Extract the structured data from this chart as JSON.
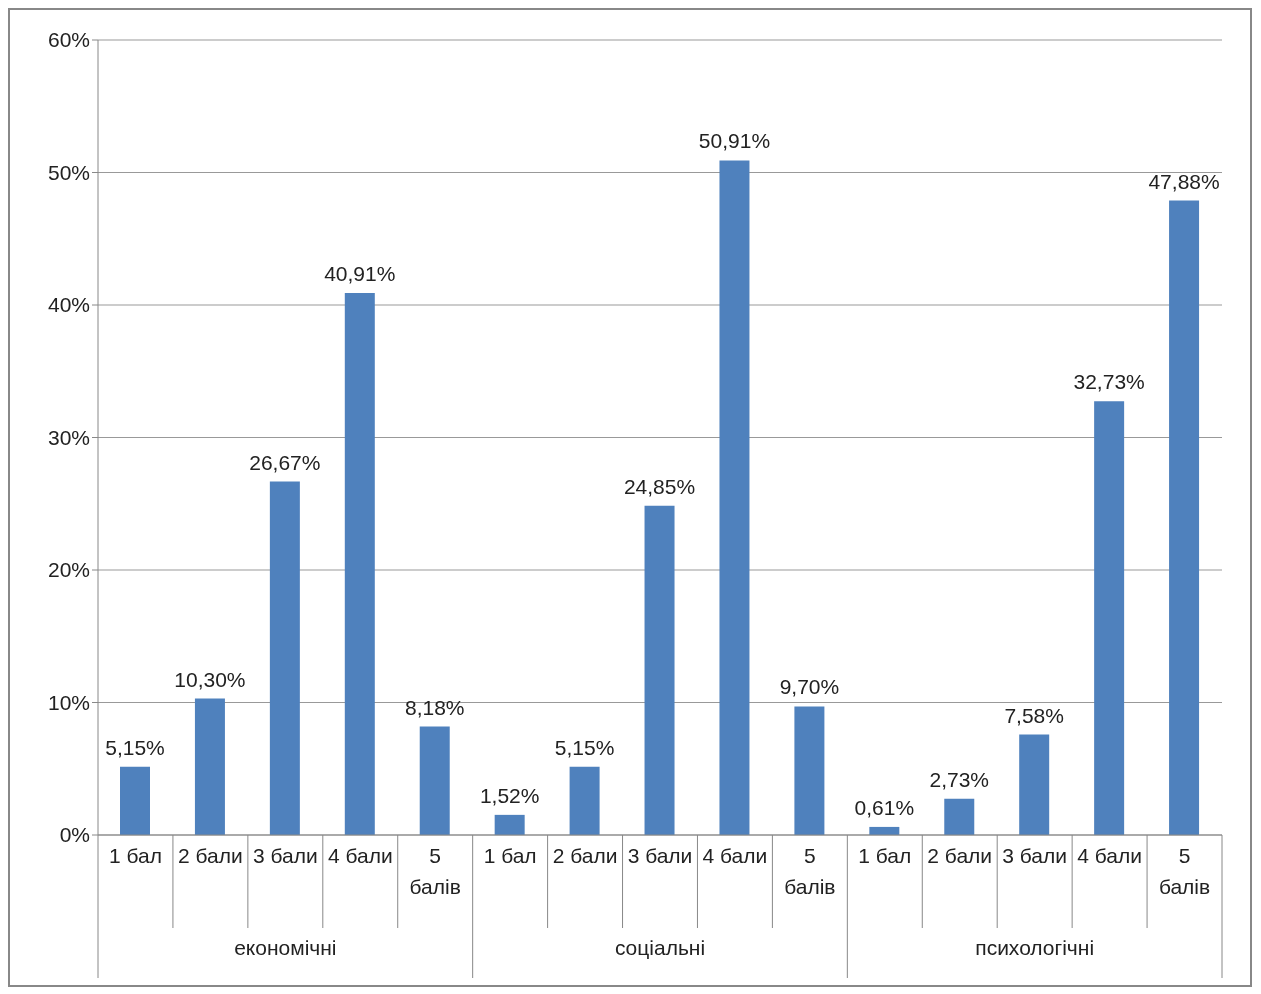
{
  "chart_data": {
    "type": "bar",
    "categories": [
      "1 бал",
      "2 бали",
      "3 бали",
      "4 бали",
      "5 балів",
      "1 бал",
      "2 бали",
      "3 бали",
      "4 бали",
      "5 балів",
      "1 бал",
      "2 бали",
      "3 бали",
      "4 бали",
      "5 балів"
    ],
    "values": [
      5.15,
      10.3,
      26.67,
      40.91,
      8.18,
      1.52,
      5.15,
      24.85,
      50.91,
      9.7,
      0.61,
      2.73,
      7.58,
      32.73,
      47.88
    ],
    "value_labels": [
      "5,15%",
      "10,30%",
      "26,67%",
      "40,91%",
      "8,18%",
      "1,52%",
      "5,15%",
      "24,85%",
      "50,91%",
      "9,70%",
      "0,61%",
      "2,73%",
      "7,58%",
      "32,73%",
      "47,88%"
    ],
    "color": "#4f81bd",
    "ylim": [
      0,
      60
    ],
    "yticks": [
      {
        "value": 0,
        "label": "0%"
      },
      {
        "value": 10,
        "label": "10%"
      },
      {
        "value": 20,
        "label": "20%"
      },
      {
        "value": 30,
        "label": "30%"
      },
      {
        "value": 40,
        "label": "40%"
      },
      {
        "value": 50,
        "label": "50%"
      },
      {
        "value": 60,
        "label": "60%"
      }
    ],
    "grid": "y",
    "legend": false,
    "annotations": [
      "економічні",
      "соціальні",
      "психологічні"
    ]
  }
}
